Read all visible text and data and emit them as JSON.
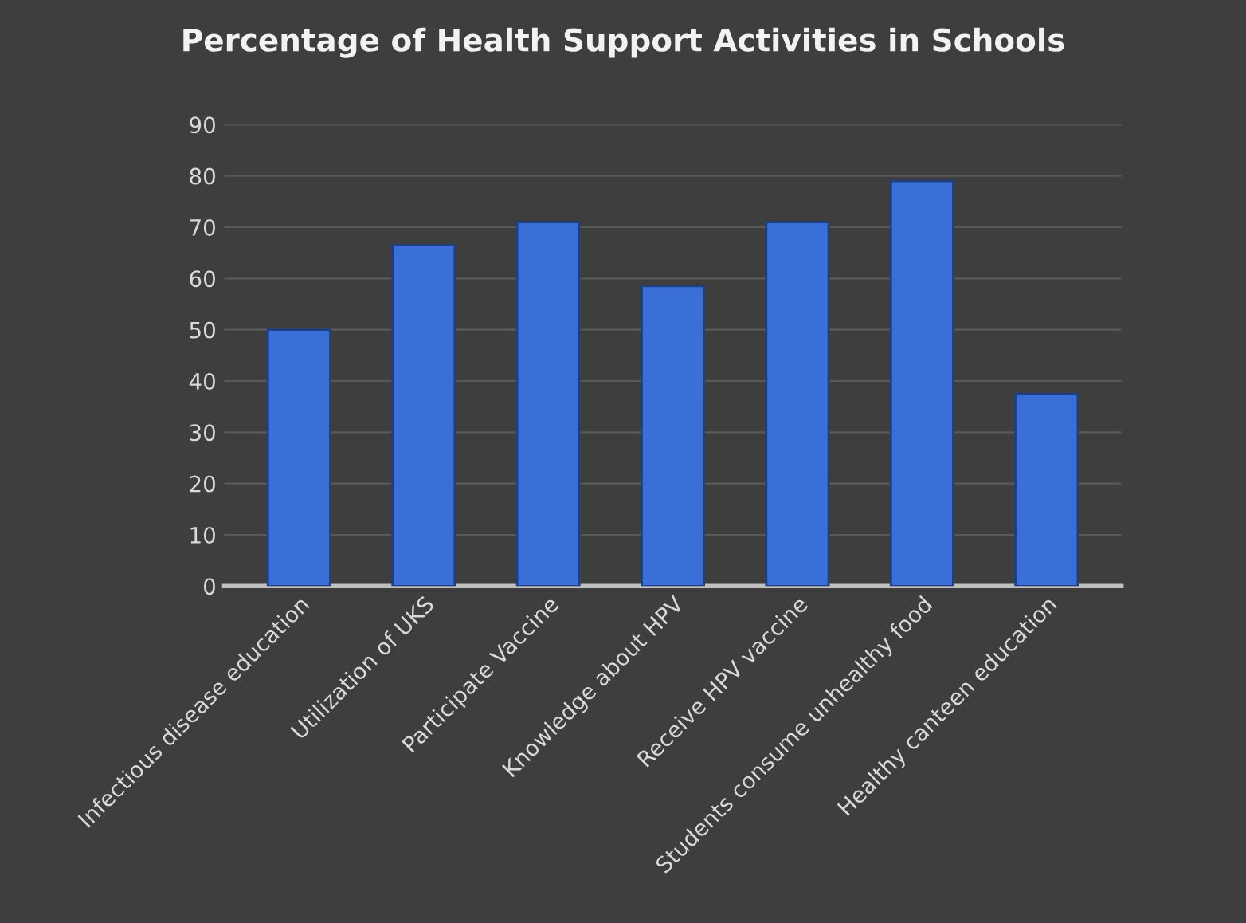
{
  "chart_data": {
    "type": "bar",
    "title": "Percentage of Health Support Activities in Schools",
    "categories": [
      "Infectious disease education",
      "Utilization of UKS",
      "Participate Vaccine",
      "Knowledge about HPV",
      "Receive HPV vaccine",
      "Students consume unhealthy food",
      "Healthy canteen education"
    ],
    "values": [
      50,
      66.5,
      71,
      58.5,
      71,
      79,
      37.5
    ],
    "color": "#3a6fd8",
    "ylim": [
      0,
      90
    ],
    "yticks": [
      0,
      10,
      20,
      30,
      40,
      50,
      60,
      70,
      80,
      90
    ],
    "grid": "y"
  }
}
